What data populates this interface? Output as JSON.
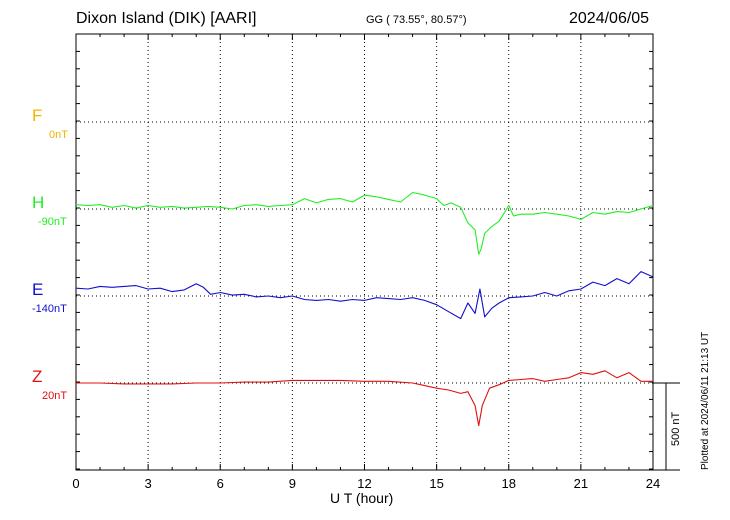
{
  "header": {
    "station": "Dixon Island (DIK)  [AARI]",
    "coords": "GG ( 73.55°,  80.57°)",
    "date": "2024/06/05"
  },
  "footer": {
    "xlabel": "U T (hour)",
    "plotted": "Plotted at 2024/06/11 21:13 UT",
    "scale": "500 nT"
  },
  "colors": {
    "F": "#f0b400",
    "H": "#22ee22",
    "E": "#1010cc",
    "Z": "#e01010"
  },
  "chart_data": {
    "type": "line",
    "xlabel": "U T (hour)",
    "xlim": [
      0,
      24
    ],
    "x_ticks": [
      0,
      3,
      6,
      9,
      12,
      15,
      18,
      21,
      24
    ],
    "scale_bar_nT": 500,
    "channels": [
      {
        "name": "F",
        "baseline_label": "0nT",
        "color": "#f0b400",
        "x": [],
        "values": []
      },
      {
        "name": "H",
        "baseline_label": "-90nT",
        "color": "#22ee22",
        "x": [
          0,
          0.5,
          1,
          1.5,
          2,
          2.5,
          3,
          3.5,
          4,
          4.5,
          5,
          5.5,
          6,
          6.5,
          7,
          7.5,
          8,
          8.5,
          9,
          9.5,
          10,
          10.5,
          11,
          11.5,
          12,
          12.5,
          13,
          13.5,
          14,
          14.5,
          15,
          15.3,
          15.6,
          16,
          16.3,
          16.6,
          16.75,
          16.85,
          17,
          17.3,
          17.6,
          18,
          18.2,
          18.5,
          19,
          19.5,
          20,
          20.5,
          21,
          21.5,
          22,
          22.5,
          23,
          23.5,
          24
        ],
        "values": [
          25,
          20,
          25,
          10,
          20,
          5,
          20,
          10,
          15,
          5,
          10,
          15,
          10,
          0,
          20,
          25,
          15,
          20,
          25,
          60,
          35,
          55,
          60,
          40,
          80,
          70,
          55,
          40,
          95,
          80,
          60,
          20,
          35,
          10,
          -80,
          -120,
          -260,
          -230,
          -140,
          -100,
          -70,
          20,
          -40,
          -30,
          -30,
          -20,
          -30,
          -40,
          -60,
          -20,
          -30,
          -15,
          -20,
          0,
          20
        ]
      },
      {
        "name": "E",
        "baseline_label": "-140nT",
        "color": "#1010cc",
        "x": [
          0,
          0.5,
          1,
          1.5,
          2,
          2.5,
          3,
          3.5,
          4,
          4.5,
          5,
          5.3,
          5.6,
          6,
          6.5,
          7,
          7.5,
          8,
          8.5,
          9,
          9.5,
          10,
          10.5,
          11,
          11.5,
          12,
          12.5,
          13,
          13.5,
          14,
          14.5,
          15,
          15.5,
          16,
          16.3,
          16.6,
          16.8,
          17,
          17.3,
          17.6,
          18,
          18.5,
          19,
          19.5,
          20,
          20.5,
          21,
          21.5,
          22,
          22.5,
          23,
          23.5,
          24
        ],
        "values": [
          45,
          40,
          55,
          50,
          55,
          60,
          40,
          45,
          25,
          35,
          70,
          50,
          10,
          20,
          5,
          10,
          -5,
          0,
          -10,
          0,
          -20,
          -25,
          -20,
          -30,
          -20,
          -25,
          -10,
          -15,
          -20,
          -10,
          -25,
          -50,
          -90,
          -130,
          -40,
          -100,
          40,
          -120,
          -70,
          -40,
          -10,
          -5,
          0,
          20,
          0,
          30,
          40,
          80,
          60,
          100,
          70,
          140,
          110
        ]
      },
      {
        "name": "Z",
        "baseline_label": "20nT",
        "color": "#e01010",
        "x": [
          0,
          1,
          2,
          3,
          4,
          5,
          6,
          7,
          8,
          9,
          10,
          11,
          12,
          13,
          14,
          14.5,
          15,
          15.5,
          16,
          16.3,
          16.6,
          16.75,
          16.9,
          17.2,
          17.6,
          18,
          18.5,
          19,
          19.5,
          20,
          20.5,
          21,
          21.5,
          22,
          22.5,
          23,
          23.5,
          24
        ],
        "values": [
          0,
          0,
          -5,
          -5,
          -5,
          0,
          0,
          5,
          5,
          15,
          15,
          15,
          10,
          10,
          0,
          -15,
          -30,
          -40,
          -60,
          -50,
          -130,
          -245,
          -130,
          -30,
          -10,
          15,
          20,
          25,
          10,
          20,
          30,
          60,
          50,
          70,
          30,
          60,
          10,
          10
        ]
      }
    ]
  }
}
